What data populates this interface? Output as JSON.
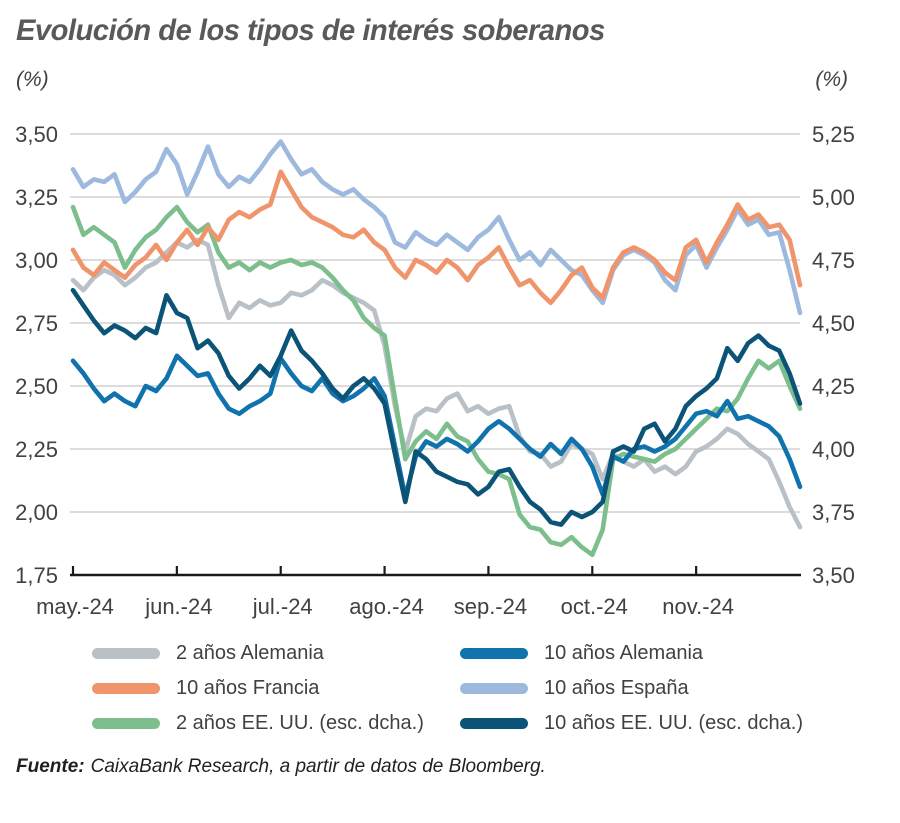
{
  "title": "Evolución de los tipos de interés soberanos",
  "unit_left": "(%)",
  "unit_right": "(%)",
  "source": {
    "label": "Fuente:",
    "text": "CaixaBank Research, a partir de datos de Bloomberg."
  },
  "chart_data": {
    "type": "line",
    "title": "Evolución de los tipos de interés soberanos",
    "x_labels": [
      "may.-24",
      "jun.-24",
      "jul.-24",
      "ago.-24",
      "sep.-24",
      "oct.-24",
      "nov.-24"
    ],
    "x_sampling": "aprox. cada 3 días, 1 may 2024 – 27 nov 2024",
    "grid": "horizontal",
    "left_axis": {
      "unit": "%",
      "min": 1.75,
      "max": 3.5,
      "step": 0.25,
      "ticks": [
        "3,50",
        "3,25",
        "3,00",
        "2,75",
        "2,50",
        "2,25",
        "2,00",
        "1,75"
      ]
    },
    "right_axis": {
      "unit": "%",
      "min": 3.5,
      "max": 5.25,
      "step": 0.25,
      "ticks": [
        "5,25",
        "5,00",
        "4,75",
        "4,50",
        "4,25",
        "4,00",
        "3,75",
        "3,50"
      ]
    },
    "legend_position": "bottom, two columns",
    "legend_layout": [
      [
        0,
        1,
        2
      ],
      [
        3,
        4,
        5
      ]
    ],
    "draw_order": [
      0,
      2,
      3,
      4,
      1,
      5
    ],
    "series": [
      {
        "id": "de-2y",
        "label": "2 años Alemania",
        "color": "#b9c0c6",
        "axis": "left",
        "values": [
          2.92,
          2.88,
          2.93,
          2.96,
          2.94,
          2.9,
          2.93,
          2.97,
          2.99,
          3.03,
          3.07,
          3.05,
          3.08,
          3.06,
          2.9,
          2.77,
          2.83,
          2.81,
          2.84,
          2.82,
          2.83,
          2.87,
          2.86,
          2.88,
          2.92,
          2.9,
          2.87,
          2.85,
          2.83,
          2.8,
          2.66,
          2.42,
          2.24,
          2.38,
          2.41,
          2.4,
          2.45,
          2.47,
          2.4,
          2.42,
          2.39,
          2.41,
          2.42,
          2.3,
          2.24,
          2.23,
          2.18,
          2.2,
          2.27,
          2.25,
          2.23,
          2.13,
          2.23,
          2.2,
          2.18,
          2.21,
          2.16,
          2.18,
          2.15,
          2.18,
          2.24,
          2.26,
          2.29,
          2.33,
          2.31,
          2.27,
          2.24,
          2.21,
          2.12,
          2.02,
          1.94
        ]
      },
      {
        "id": "fr-10y",
        "label": "10 años Francia",
        "color": "#f0946b",
        "axis": "left",
        "values": [
          3.04,
          2.97,
          2.94,
          2.99,
          2.96,
          2.93,
          2.98,
          3.01,
          3.06,
          3.0,
          3.07,
          3.12,
          3.06,
          3.13,
          3.08,
          3.16,
          3.19,
          3.17,
          3.2,
          3.22,
          3.35,
          3.28,
          3.21,
          3.17,
          3.15,
          3.13,
          3.1,
          3.09,
          3.12,
          3.07,
          3.04,
          2.97,
          2.93,
          3.0,
          2.98,
          2.95,
          3.0,
          2.97,
          2.92,
          2.98,
          3.01,
          3.05,
          2.97,
          2.9,
          2.92,
          2.87,
          2.83,
          2.88,
          2.94,
          2.97,
          2.89,
          2.85,
          2.97,
          3.03,
          3.05,
          3.03,
          3.0,
          2.95,
          2.92,
          3.05,
          3.08,
          2.99,
          3.07,
          3.14,
          3.22,
          3.16,
          3.18,
          3.13,
          3.14,
          3.08,
          2.9
        ]
      },
      {
        "id": "us-2y",
        "label": "2 años EE. UU. (esc. dcha.)",
        "color": "#7cbe8c",
        "axis": "right",
        "values": [
          4.96,
          4.85,
          4.88,
          4.85,
          4.82,
          4.72,
          4.79,
          4.84,
          4.87,
          4.92,
          4.96,
          4.9,
          4.86,
          4.89,
          4.78,
          4.72,
          4.74,
          4.71,
          4.74,
          4.72,
          4.74,
          4.75,
          4.73,
          4.74,
          4.72,
          4.68,
          4.63,
          4.59,
          4.52,
          4.48,
          4.45,
          4.2,
          3.96,
          4.03,
          4.07,
          4.04,
          4.1,
          4.05,
          4.03,
          3.96,
          3.91,
          3.9,
          3.88,
          3.74,
          3.69,
          3.68,
          3.63,
          3.62,
          3.65,
          3.61,
          3.58,
          3.68,
          3.96,
          3.98,
          3.97,
          3.96,
          3.95,
          3.98,
          4.0,
          4.04,
          4.08,
          4.12,
          4.16,
          4.15,
          4.2,
          4.28,
          4.35,
          4.32,
          4.35,
          4.25,
          4.16
        ]
      },
      {
        "id": "de-10y",
        "label": "10 años Alemania",
        "color": "#1173ad",
        "axis": "left",
        "values": [
          2.6,
          2.55,
          2.49,
          2.44,
          2.47,
          2.44,
          2.42,
          2.5,
          2.48,
          2.53,
          2.62,
          2.58,
          2.54,
          2.55,
          2.47,
          2.41,
          2.39,
          2.42,
          2.44,
          2.47,
          2.61,
          2.55,
          2.5,
          2.48,
          2.53,
          2.47,
          2.44,
          2.46,
          2.49,
          2.53,
          2.46,
          2.26,
          2.06,
          2.22,
          2.28,
          2.26,
          2.29,
          2.27,
          2.24,
          2.28,
          2.33,
          2.36,
          2.33,
          2.29,
          2.25,
          2.22,
          2.27,
          2.23,
          2.29,
          2.25,
          2.18,
          2.07,
          2.22,
          2.2,
          2.25,
          2.26,
          2.24,
          2.26,
          2.29,
          2.34,
          2.39,
          2.4,
          2.38,
          2.44,
          2.37,
          2.38,
          2.36,
          2.34,
          2.3,
          2.21,
          2.1
        ]
      },
      {
        "id": "es-10y",
        "label": "10 años España",
        "color": "#9db9dd",
        "axis": "left",
        "values": [
          3.36,
          3.29,
          3.32,
          3.31,
          3.34,
          3.23,
          3.27,
          3.32,
          3.35,
          3.44,
          3.38,
          3.26,
          3.35,
          3.45,
          3.34,
          3.29,
          3.33,
          3.31,
          3.36,
          3.42,
          3.47,
          3.4,
          3.34,
          3.36,
          3.31,
          3.28,
          3.26,
          3.28,
          3.24,
          3.21,
          3.17,
          3.07,
          3.05,
          3.11,
          3.08,
          3.06,
          3.1,
          3.07,
          3.04,
          3.09,
          3.12,
          3.17,
          3.08,
          3.0,
          3.03,
          2.98,
          3.04,
          3.0,
          2.96,
          2.94,
          2.88,
          2.83,
          2.96,
          3.02,
          3.04,
          3.02,
          2.99,
          2.92,
          2.88,
          3.02,
          3.06,
          2.97,
          3.05,
          3.12,
          3.2,
          3.14,
          3.16,
          3.1,
          3.11,
          2.96,
          2.79
        ]
      },
      {
        "id": "us-10y",
        "label": "10 años EE. UU. (esc. dcha.)",
        "color": "#0c5477",
        "axis": "right",
        "values": [
          4.63,
          4.57,
          4.51,
          4.46,
          4.49,
          4.47,
          4.44,
          4.48,
          4.46,
          4.61,
          4.54,
          4.52,
          4.4,
          4.43,
          4.38,
          4.29,
          4.24,
          4.28,
          4.33,
          4.29,
          4.37,
          4.47,
          4.39,
          4.35,
          4.3,
          4.24,
          4.2,
          4.25,
          4.28,
          4.24,
          4.18,
          3.98,
          3.79,
          3.99,
          3.96,
          3.91,
          3.89,
          3.87,
          3.86,
          3.82,
          3.85,
          3.91,
          3.92,
          3.85,
          3.79,
          3.76,
          3.71,
          3.7,
          3.75,
          3.73,
          3.75,
          3.79,
          3.99,
          4.01,
          3.99,
          4.08,
          4.1,
          4.03,
          4.08,
          4.17,
          4.21,
          4.24,
          4.28,
          4.4,
          4.35,
          4.42,
          4.45,
          4.41,
          4.39,
          4.3,
          4.18
        ]
      }
    ],
    "colors": {
      "grid": "#c8c8c8",
      "axis": "#1a1a1a",
      "tick_text": "#414042",
      "title_text": "#58595b"
    }
  }
}
